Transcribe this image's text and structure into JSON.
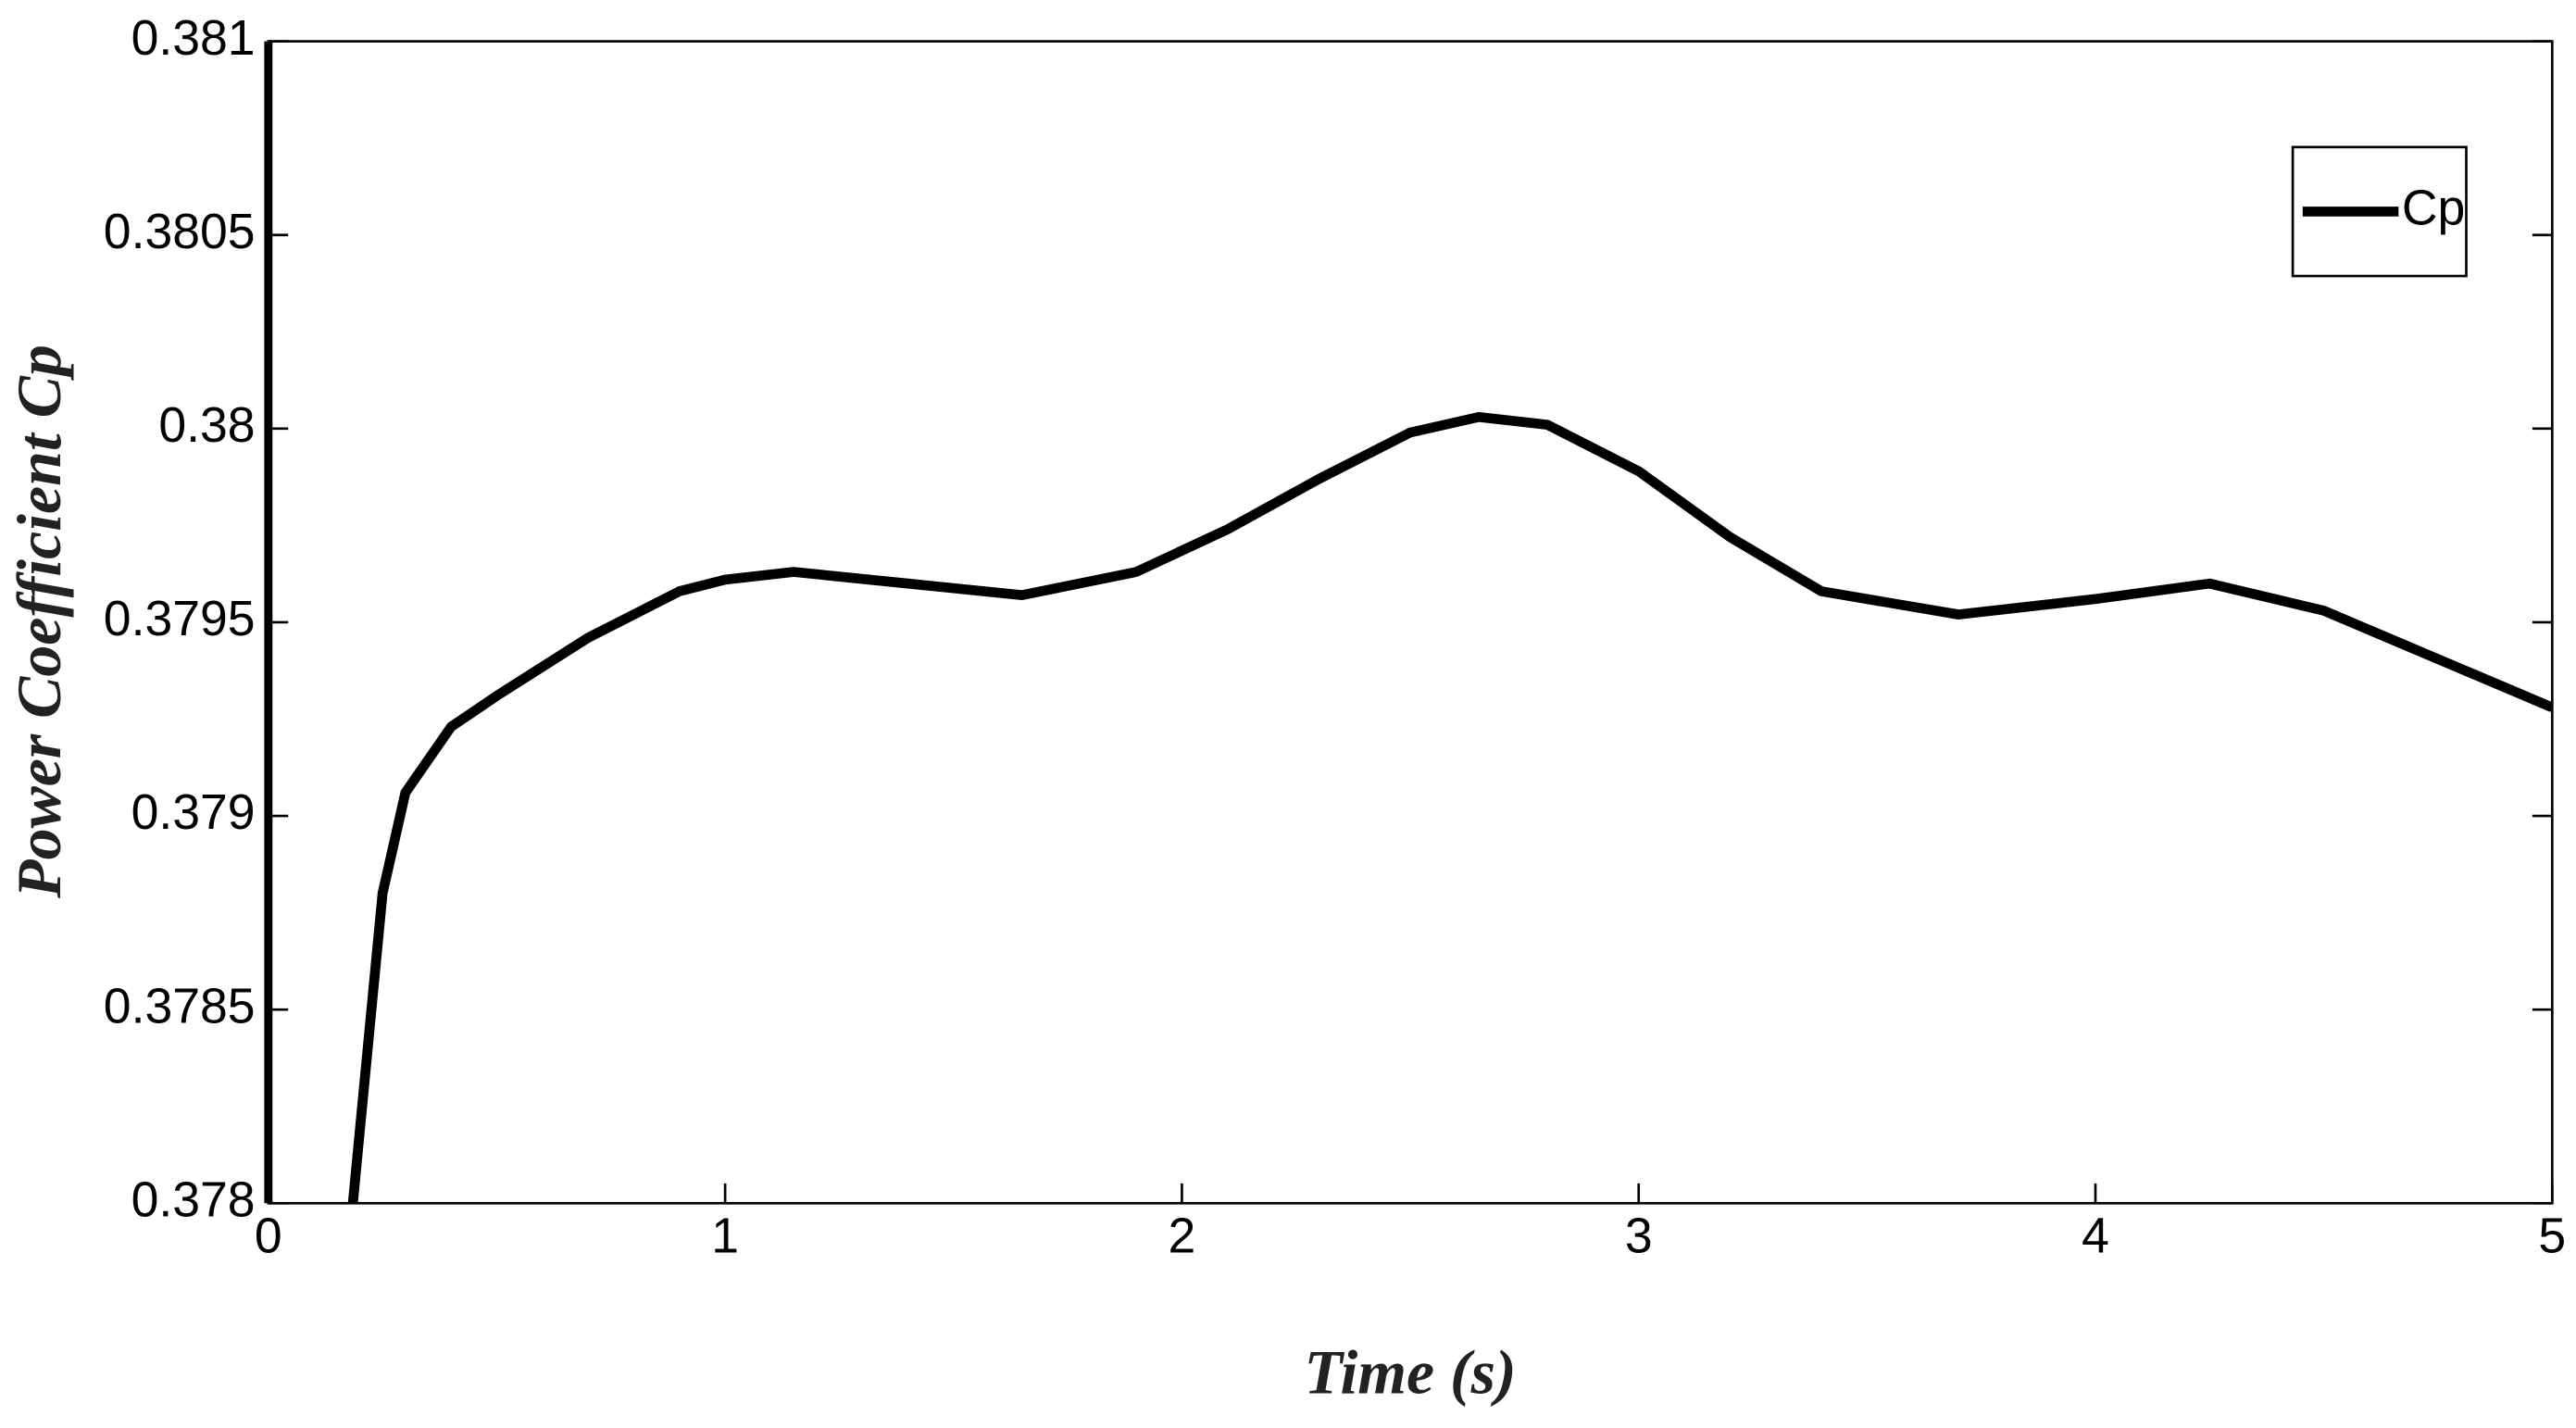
{
  "chart_data": {
    "type": "line",
    "xlabel": "Time (s)",
    "ylabel": "Power Coefficient Cp",
    "x": [
      0.185,
      0.25,
      0.3,
      0.4,
      0.5,
      0.7,
      0.9,
      1.0,
      1.15,
      1.4,
      1.65,
      1.9,
      2.1,
      2.3,
      2.5,
      2.65,
      2.8,
      3.0,
      3.2,
      3.4,
      3.7,
      4.0,
      4.25,
      4.5,
      5.0
    ],
    "series": [
      {
        "name": "Cp",
        "color": "#000000",
        "values": [
          0.378,
          0.3788,
          0.37906,
          0.37923,
          0.37931,
          0.37946,
          0.37958,
          0.37961,
          0.37963,
          0.3796,
          0.37957,
          0.37963,
          0.37974,
          0.37987,
          0.37999,
          0.38003,
          0.38001,
          0.37989,
          0.37972,
          0.37958,
          0.37952,
          0.37956,
          0.3796,
          0.37953,
          0.37928
        ]
      }
    ],
    "xlim": [
      0,
      5
    ],
    "xticks": [
      0,
      1,
      2,
      3,
      4,
      5
    ],
    "ylim": [
      0.378,
      0.381
    ],
    "yticks": [
      0.378,
      0.3785,
      0.379,
      0.3795,
      0.38,
      0.3805,
      0.381
    ],
    "legend": "upper right"
  }
}
